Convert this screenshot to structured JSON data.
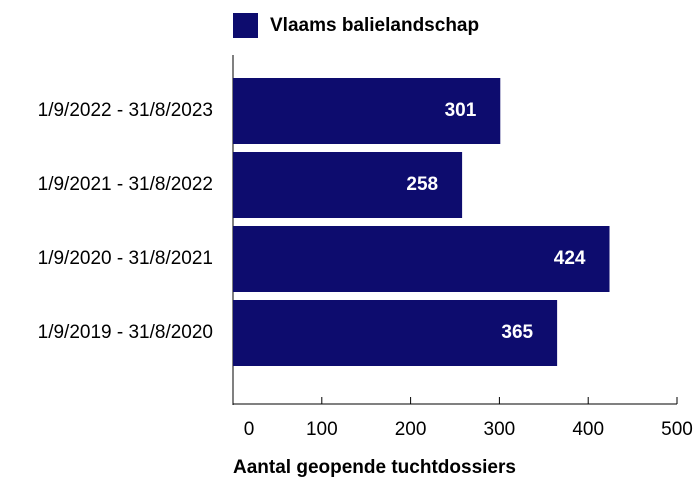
{
  "chart_data": {
    "type": "bar",
    "orientation": "horizontal",
    "x_label": "Aantal geopende tuchtdossiers",
    "categories": [
      "1/9/2022 - 31/8/2023",
      "1/9/2021 - 31/8/2022",
      "1/9/2020 - 31/8/2021",
      "1/9/2019 - 31/8/2020"
    ],
    "series": [
      {
        "name": "Vlaams balielandschap",
        "color": "#0d0c6e",
        "values": [
          301,
          258,
          424,
          365
        ]
      }
    ],
    "xlim": [
      0,
      500
    ],
    "xticks": [
      0,
      100,
      200,
      300,
      400,
      500
    ],
    "legend": "top"
  }
}
